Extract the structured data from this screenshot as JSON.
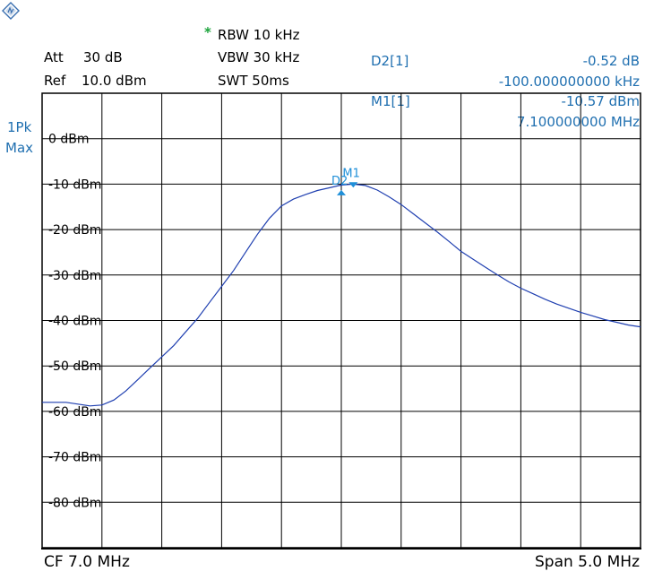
{
  "header": {
    "rbw_star": "*",
    "rbw": "RBW 10 kHz",
    "vbw": "VBW 30 kHz",
    "swt": "SWT 50ms",
    "att_label": "Att",
    "att_value": "30 dB",
    "ref_label": "Ref",
    "ref_value": "10.0 dBm"
  },
  "markers": {
    "d2_label": "D2[1]",
    "d2_value": "-0.52 dB",
    "d2_freq": "-100.000000000 kHz",
    "m1_label": "M1[1]",
    "m1_value": "-10.57 dBm",
    "m1_freq": "7.100000000 MHz"
  },
  "trace": {
    "mode_line1": "1Pk",
    "mode_line2": "Max"
  },
  "footer": {
    "cf": "CF 7.0 MHz",
    "span": "Span 5.0 MHz"
  },
  "colors": {
    "trace": "#1f3fb0",
    "marker": "#1f8fd8",
    "text_blue": "#1f6fb0",
    "grid": "#000000"
  },
  "chart_data": {
    "type": "line",
    "x_unit": "MHz",
    "y_unit": "dBm",
    "xlim": [
      4.5,
      9.5
    ],
    "ylim": [
      -90,
      10
    ],
    "y_ticks": [
      0,
      -10,
      -20,
      -30,
      -40,
      -50,
      -60,
      -70,
      -80
    ],
    "y_tick_labels": [
      "0 dBm",
      "-10 dBm",
      "-20 dBm",
      "-30 dBm",
      "-40 dBm",
      "-50 dBm",
      "-60 dBm",
      "-70 dBm",
      "-80 dBm"
    ],
    "x_divisions": 10,
    "grid": true,
    "series": [
      {
        "x": [
          4.5,
          4.6,
          4.7,
          4.8,
          4.9,
          5.0,
          5.1,
          5.2,
          5.3,
          5.4,
          5.5,
          5.6,
          5.7,
          5.8,
          5.9,
          6.0,
          6.1,
          6.2,
          6.3,
          6.4,
          6.5,
          6.6,
          6.7,
          6.8,
          6.9,
          7.0,
          7.1,
          7.2,
          7.3,
          7.4,
          7.5,
          7.6,
          7.7,
          7.8,
          7.9,
          8.0,
          8.1,
          8.2,
          8.3,
          8.4,
          8.5,
          8.6,
          8.7,
          8.8,
          8.9,
          9.0,
          9.1,
          9.2,
          9.3,
          9.4,
          9.5
        ],
        "y": [
          -58.0,
          -58.0,
          -58.0,
          -58.4,
          -58.8,
          -58.6,
          -57.5,
          -55.5,
          -53.0,
          -50.5,
          -48.0,
          -45.5,
          -42.5,
          -39.5,
          -36.0,
          -32.5,
          -29.0,
          -25.0,
          -21.0,
          -17.5,
          -14.8,
          -13.3,
          -12.3,
          -11.4,
          -10.8,
          -10.2,
          -10.0,
          -10.3,
          -11.3,
          -12.8,
          -14.5,
          -16.5,
          -18.5,
          -20.5,
          -22.6,
          -24.8,
          -26.5,
          -28.2,
          -29.9,
          -31.5,
          -32.9,
          -34.1,
          -35.3,
          -36.4,
          -37.3,
          -38.2,
          -39.0,
          -39.8,
          -40.4,
          -41.0,
          -41.4
        ]
      }
    ],
    "marker_points": [
      {
        "label": "M1",
        "x": 7.1,
        "y": -10.57
      },
      {
        "label": "D2",
        "x": 7.0,
        "y": -11.09
      }
    ]
  }
}
